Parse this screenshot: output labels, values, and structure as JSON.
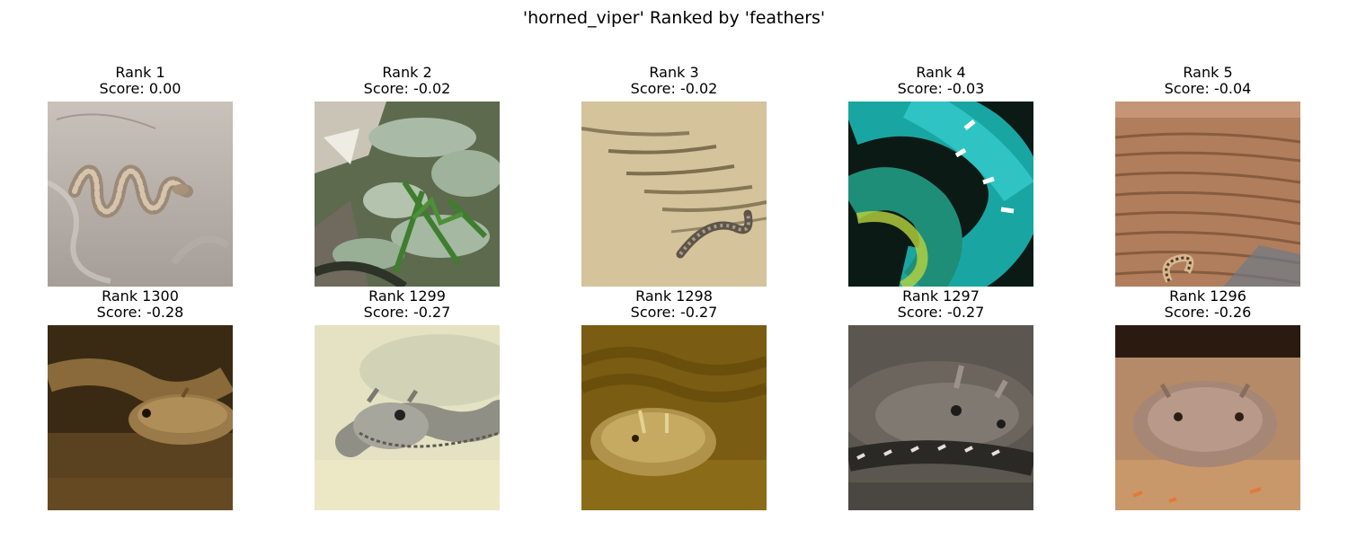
{
  "title": "'horned_viper' Ranked by 'feathers'",
  "top_row": [
    {
      "rank": "Rank 1",
      "score": "Score: 0.00"
    },
    {
      "rank": "Rank 2",
      "score": "Score: -0.02"
    },
    {
      "rank": "Rank 3",
      "score": "Score: -0.02"
    },
    {
      "rank": "Rank 4",
      "score": "Score: -0.03"
    },
    {
      "rank": "Rank 5",
      "score": "Score: -0.04"
    }
  ],
  "bottom_row": [
    {
      "rank": "Rank 1300",
      "score": "Score: -0.28"
    },
    {
      "rank": "Rank 1299",
      "score": "Score: -0.27"
    },
    {
      "rank": "Rank 1298",
      "score": "Score: -0.27"
    },
    {
      "rank": "Rank 1297",
      "score": "Score: -0.27"
    },
    {
      "rank": "Rank 1296",
      "score": "Score: -0.26"
    }
  ]
}
